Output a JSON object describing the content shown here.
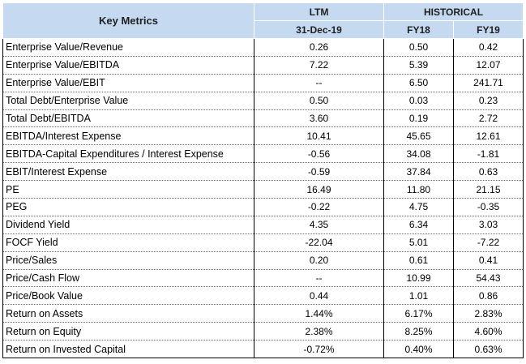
{
  "header": {
    "key_metrics": "Key Metrics",
    "ltm": "LTM",
    "historical": "HISTORICAL",
    "ltm_date": "31-Dec-19",
    "fy18": "FY18",
    "fy19": "FY19"
  },
  "rows": [
    {
      "metric": "Enterprise Value/Revenue",
      "ltm": "0.26",
      "fy18": "0.50",
      "fy19": "0.42"
    },
    {
      "metric": "Enterprise Value/EBITDA",
      "ltm": "7.22",
      "fy18": "5.39",
      "fy19": "12.07"
    },
    {
      "metric": "Enterprise Value/EBIT",
      "ltm": "--",
      "fy18": "6.50",
      "fy19": "241.71"
    },
    {
      "metric": "Total Debt/Enterprise Value",
      "ltm": "0.50",
      "fy18": "0.03",
      "fy19": "0.23"
    },
    {
      "metric": "Total Debt/EBITDA",
      "ltm": "3.60",
      "fy18": "0.19",
      "fy19": "2.72"
    },
    {
      "metric": "EBITDA/Interest Expense",
      "ltm": "10.41",
      "fy18": "45.65",
      "fy19": "12.61"
    },
    {
      "metric": "EBITDA-Capital Expenditures / Interest Expense",
      "ltm": "-0.56",
      "fy18": "34.08",
      "fy19": "-1.81"
    },
    {
      "metric": "EBIT/Interest Expense",
      "ltm": "-0.59",
      "fy18": "37.84",
      "fy19": "0.63"
    },
    {
      "metric": "PE",
      "ltm": "16.49",
      "fy18": "11.80",
      "fy19": "21.15"
    },
    {
      "metric": "PEG",
      "ltm": "-0.22",
      "fy18": "4.75",
      "fy19": "-0.35"
    },
    {
      "metric": "Dividend Yield",
      "ltm": "4.35",
      "fy18": "6.34",
      "fy19": "3.03"
    },
    {
      "metric": "FOCF Yield",
      "ltm": "-22.04",
      "fy18": "5.01",
      "fy19": "-7.22"
    },
    {
      "metric": "Price/Sales",
      "ltm": "0.20",
      "fy18": "0.61",
      "fy19": "0.41"
    },
    {
      "metric": "Price/Cash Flow",
      "ltm": "--",
      "fy18": "10.99",
      "fy19": "54.43"
    },
    {
      "metric": "Price/Book Value",
      "ltm": "0.44",
      "fy18": "1.01",
      "fy19": "0.86"
    },
    {
      "metric": "Return on Assets",
      "ltm": "1.44%",
      "fy18": "6.17%",
      "fy19": "2.83%"
    },
    {
      "metric": "Return on Equity",
      "ltm": "2.38%",
      "fy18": "8.25%",
      "fy19": "4.60%"
    },
    {
      "metric": "Return on Invested Capital",
      "ltm": "-0.72%",
      "fy18": "0.40%",
      "fy19": "0.63%"
    }
  ],
  "colors": {
    "header_bg": "#c5d9f1",
    "grid": "#000000"
  }
}
